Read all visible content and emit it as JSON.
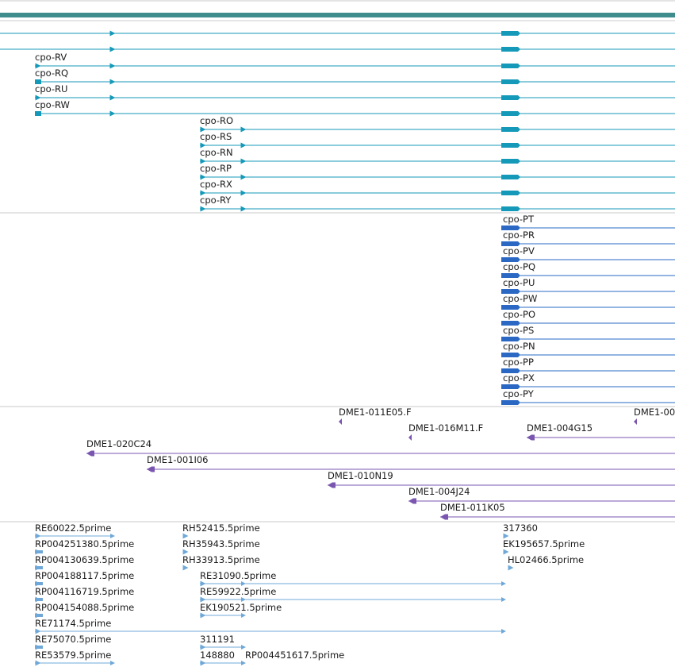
{
  "colors": {
    "scaffold": "#3e8c8c",
    "gene_cpo_r": "#1599b9",
    "gene_cpo_p": "#2a68c4",
    "insertion": "#7a56b0",
    "cdna": "#6fa8d8",
    "separator": "#c8c8c8"
  },
  "tracks": {
    "scaffold": {
      "label": ""
    },
    "top_genes": [
      {
        "label": ""
      },
      {
        "label": ""
      }
    ],
    "cpo_r_genes": [
      {
        "label": "cpo-RV"
      },
      {
        "label": "cpo-RQ"
      },
      {
        "label": "cpo-RU"
      },
      {
        "label": "cpo-RW"
      },
      {
        "label": "cpo-RO"
      },
      {
        "label": "cpo-RS"
      },
      {
        "label": "cpo-RN"
      },
      {
        "label": "cpo-RP"
      },
      {
        "label": "cpo-RX"
      },
      {
        "label": "cpo-RY"
      }
    ],
    "cpo_p_genes": [
      {
        "label": "cpo-PT"
      },
      {
        "label": "cpo-PR"
      },
      {
        "label": "cpo-PV"
      },
      {
        "label": "cpo-PQ"
      },
      {
        "label": "cpo-PU"
      },
      {
        "label": "cpo-PW"
      },
      {
        "label": "cpo-PO"
      },
      {
        "label": "cpo-PS"
      },
      {
        "label": "cpo-PN"
      },
      {
        "label": "cpo-PP"
      },
      {
        "label": "cpo-PX"
      },
      {
        "label": "cpo-PY"
      }
    ],
    "insertions": [
      {
        "label": "DME1-011E05.F"
      },
      {
        "label": "DME1-00"
      },
      {
        "label": "DME1-016M11.F"
      },
      {
        "label": "DME1-004G15"
      },
      {
        "label": "DME1-020C24"
      },
      {
        "label": "DME1-001I06"
      },
      {
        "label": "DME1-010N19"
      },
      {
        "label": "DME1-004J24"
      },
      {
        "label": "DME1-011K05"
      }
    ],
    "cdna": [
      {
        "label": "RE60022.5prime"
      },
      {
        "label": "RP004251380.5prime"
      },
      {
        "label": "RP004130639.5prime"
      },
      {
        "label": "RP004188117.5prime"
      },
      {
        "label": "RP004116719.5prime"
      },
      {
        "label": "RP004154088.5prime"
      },
      {
        "label": "RE71174.5prime"
      },
      {
        "label": "RE75070.5prime"
      },
      {
        "label": "RE53579.5prime"
      },
      {
        "label": "RH52415.5prime"
      },
      {
        "label": "RH35943.5prime"
      },
      {
        "label": "RH33913.5prime"
      },
      {
        "label": "RE31090.5prime"
      },
      {
        "label": "RE59922.5prime"
      },
      {
        "label": "EK190521.5prime"
      },
      {
        "label": "311191"
      },
      {
        "label": "148880"
      },
      {
        "label": "RP004451617.5prime"
      },
      {
        "label": "317360"
      },
      {
        "label": "EK195657.5prime"
      },
      {
        "label": "HL02466.5prime"
      }
    ]
  }
}
